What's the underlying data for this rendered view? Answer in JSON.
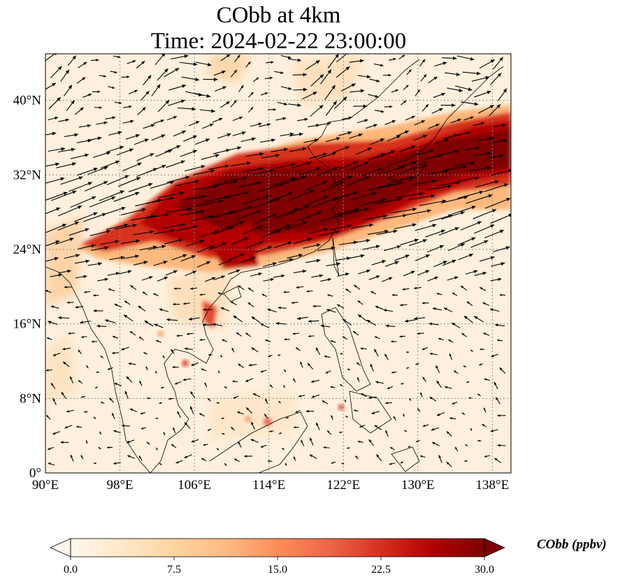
{
  "title": {
    "line1": "CObb at 4km",
    "line2": "Time: 2024-02-22 23:00:00"
  },
  "map": {
    "extent": {
      "lon_min": 90,
      "lon_max": 140,
      "lat_min": 0,
      "lat_max": 45
    },
    "lon_ticks": [
      90,
      98,
      106,
      114,
      122,
      130,
      138
    ],
    "lon_tick_labels": [
      "90°E",
      "98°E",
      "106°E",
      "114°E",
      "122°E",
      "130°E",
      "138°E"
    ],
    "lat_ticks": [
      0,
      8,
      16,
      24,
      32,
      40
    ],
    "lat_tick_labels": [
      "0°",
      "8°N",
      "16°N",
      "24°N",
      "32°N",
      "40°N"
    ],
    "gridlines": "dotted",
    "colormap": "OrRd",
    "vectors": "wind arrows"
  },
  "colorbar": {
    "label": "CObb (ppbv)",
    "range": [
      0,
      30
    ],
    "extend": "both",
    "ticks": [
      0,
      7.5,
      15,
      22.5,
      30
    ],
    "tick_labels": [
      "0.0",
      "7.5",
      "15.0",
      "22.5",
      "30.0"
    ],
    "colors": [
      "#fff7ec",
      "#fee8c8",
      "#fdd49e",
      "#fdbb84",
      "#fc8d59",
      "#ef6548",
      "#d7301f",
      "#b30000",
      "#7f0000"
    ]
  }
}
